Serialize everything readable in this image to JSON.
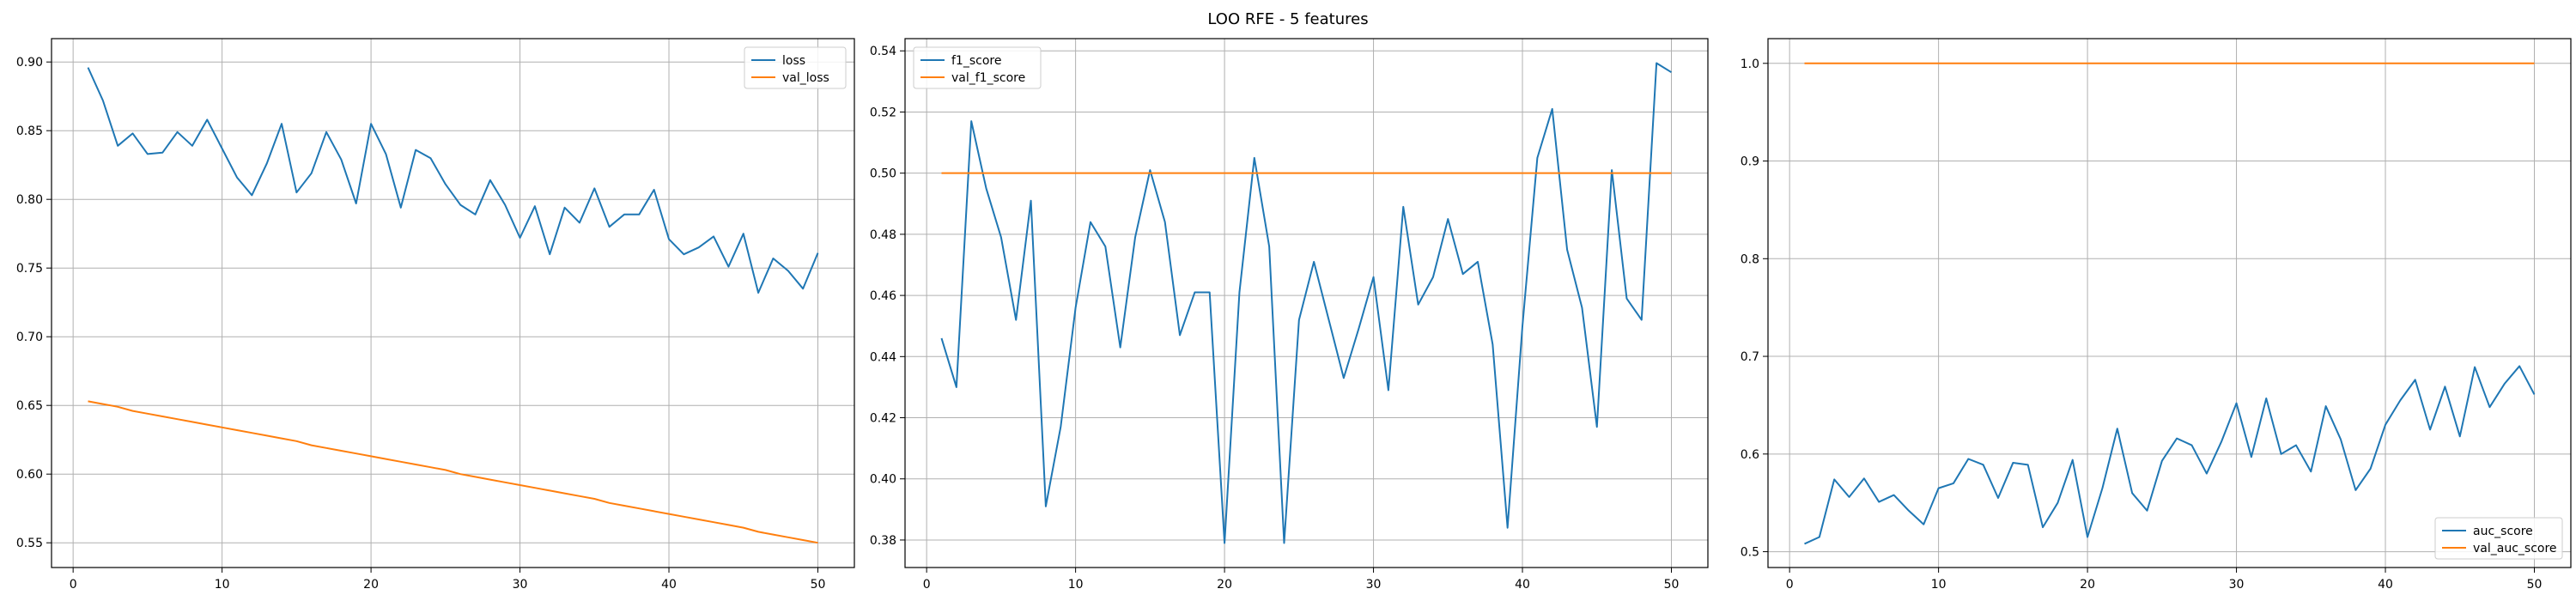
{
  "title": "LOO RFE - 5 features",
  "colors": {
    "series1": "#1f77b4",
    "series2": "#ff7f0e",
    "grid": "#b0b0b0"
  },
  "chart_data": [
    {
      "type": "line",
      "title": "",
      "xlabel": "",
      "ylabel": "",
      "xlim": [
        -1.45,
        52.45
      ],
      "ylim": [
        0.532,
        0.917
      ],
      "xticks": [
        0,
        10,
        20,
        30,
        40,
        50
      ],
      "yticks": [
        0.55,
        0.6,
        0.65,
        0.7,
        0.75,
        0.8,
        0.85,
        0.9
      ],
      "ytick_decimals": 2,
      "grid": true,
      "legend": "top-right",
      "x": [
        1,
        2,
        3,
        4,
        5,
        6,
        7,
        8,
        9,
        10,
        11,
        12,
        13,
        14,
        15,
        16,
        17,
        18,
        19,
        20,
        21,
        22,
        23,
        24,
        25,
        26,
        27,
        28,
        29,
        30,
        31,
        32,
        33,
        34,
        35,
        36,
        37,
        38,
        39,
        40,
        41,
        42,
        43,
        44,
        45,
        46,
        47,
        48,
        49,
        50
      ],
      "series": [
        {
          "name": "loss",
          "values": [
            0.896,
            0.872,
            0.839,
            0.848,
            0.833,
            0.834,
            0.849,
            0.839,
            0.858,
            0.837,
            0.816,
            0.803,
            0.826,
            0.855,
            0.805,
            0.819,
            0.849,
            0.829,
            0.797,
            0.855,
            0.833,
            0.794,
            0.836,
            0.83,
            0.811,
            0.796,
            0.789,
            0.814,
            0.796,
            0.772,
            0.795,
            0.76,
            0.794,
            0.783,
            0.808,
            0.78,
            0.789,
            0.789,
            0.807,
            0.771,
            0.76,
            0.765,
            0.773,
            0.751,
            0.775,
            0.732,
            0.757,
            0.748,
            0.735,
            0.761
          ]
        },
        {
          "name": "val_loss",
          "values": [
            0.653,
            0.651,
            0.649,
            0.646,
            0.644,
            0.642,
            0.64,
            0.638,
            0.636,
            0.634,
            0.632,
            0.63,
            0.628,
            0.626,
            0.624,
            0.621,
            0.619,
            0.617,
            0.615,
            0.613,
            0.611,
            0.609,
            0.607,
            0.605,
            0.603,
            0.6,
            0.598,
            0.596,
            0.594,
            0.592,
            0.59,
            0.588,
            0.586,
            0.584,
            0.582,
            0.579,
            0.577,
            0.575,
            0.573,
            0.571,
            0.569,
            0.567,
            0.565,
            0.563,
            0.561,
            0.558,
            0.556,
            0.554,
            0.552,
            0.55
          ]
        }
      ]
    },
    {
      "type": "line",
      "title": "",
      "xlabel": "",
      "ylabel": "",
      "xlim": [
        -1.45,
        52.45
      ],
      "ylim": [
        0.371,
        0.544
      ],
      "xticks": [
        0,
        10,
        20,
        30,
        40,
        50
      ],
      "yticks": [
        0.38,
        0.4,
        0.42,
        0.44,
        0.46,
        0.48,
        0.5,
        0.52,
        0.54
      ],
      "ytick_decimals": 2,
      "grid": true,
      "legend": "top-left",
      "x": [
        1,
        2,
        3,
        4,
        5,
        6,
        7,
        8,
        9,
        10,
        11,
        12,
        13,
        14,
        15,
        16,
        17,
        18,
        19,
        20,
        21,
        22,
        23,
        24,
        25,
        26,
        27,
        28,
        29,
        30,
        31,
        32,
        33,
        34,
        35,
        36,
        37,
        38,
        39,
        40,
        41,
        42,
        43,
        44,
        45,
        46,
        47,
        48,
        49,
        50
      ],
      "series": [
        {
          "name": "f1_score",
          "values": [
            0.446,
            0.43,
            0.517,
            0.495,
            0.479,
            0.452,
            0.491,
            0.391,
            0.417,
            0.456,
            0.484,
            0.476,
            0.443,
            0.479,
            0.501,
            0.484,
            0.447,
            0.461,
            0.461,
            0.379,
            0.461,
            0.505,
            0.476,
            0.379,
            0.452,
            0.471,
            0.452,
            0.433,
            0.449,
            0.466,
            0.429,
            0.489,
            0.457,
            0.466,
            0.485,
            0.467,
            0.471,
            0.444,
            0.384,
            0.45,
            0.505,
            0.521,
            0.475,
            0.456,
            0.417,
            0.501,
            0.459,
            0.452,
            0.536,
            0.533
          ]
        },
        {
          "name": "val_f1_score",
          "values": [
            0.5,
            0.5,
            0.5,
            0.5,
            0.5,
            0.5,
            0.5,
            0.5,
            0.5,
            0.5,
            0.5,
            0.5,
            0.5,
            0.5,
            0.5,
            0.5,
            0.5,
            0.5,
            0.5,
            0.5,
            0.5,
            0.5,
            0.5,
            0.5,
            0.5,
            0.5,
            0.5,
            0.5,
            0.5,
            0.5,
            0.5,
            0.5,
            0.5,
            0.5,
            0.5,
            0.5,
            0.5,
            0.5,
            0.5,
            0.5,
            0.5,
            0.5,
            0.5,
            0.5,
            0.5,
            0.5,
            0.5,
            0.5,
            0.5,
            0.5
          ]
        }
      ]
    },
    {
      "type": "line",
      "title": "",
      "xlabel": "",
      "ylabel": "",
      "xlim": [
        -1.45,
        52.45
      ],
      "ylim": [
        0.4838,
        1.0253
      ],
      "xticks": [
        0,
        10,
        20,
        30,
        40,
        50
      ],
      "yticks": [
        0.5,
        0.6,
        0.7,
        0.8,
        0.9,
        1.0
      ],
      "ytick_decimals": 1,
      "grid": true,
      "legend": "bottom-right",
      "x": [
        1,
        2,
        3,
        4,
        5,
        6,
        7,
        8,
        9,
        10,
        11,
        12,
        13,
        14,
        15,
        16,
        17,
        18,
        19,
        20,
        21,
        22,
        23,
        24,
        25,
        26,
        27,
        28,
        29,
        30,
        31,
        32,
        33,
        34,
        35,
        36,
        37,
        38,
        39,
        40,
        41,
        42,
        43,
        44,
        45,
        46,
        47,
        48,
        49,
        50
      ],
      "series": [
        {
          "name": "auc_score",
          "values": [
            0.508,
            0.515,
            0.574,
            0.556,
            0.575,
            0.551,
            0.558,
            0.542,
            0.528,
            0.565,
            0.57,
            0.595,
            0.589,
            0.555,
            0.591,
            0.589,
            0.525,
            0.55,
            0.594,
            0.515,
            0.565,
            0.626,
            0.56,
            0.542,
            0.593,
            0.616,
            0.609,
            0.58,
            0.613,
            0.652,
            0.597,
            0.657,
            0.6,
            0.609,
            0.582,
            0.649,
            0.615,
            0.563,
            0.585,
            0.63,
            0.655,
            0.676,
            0.625,
            0.669,
            0.618,
            0.689,
            0.648,
            0.672,
            0.69,
            0.661
          ]
        },
        {
          "name": "val_auc_score",
          "values": [
            1,
            1,
            1,
            1,
            1,
            1,
            1,
            1,
            1,
            1,
            1,
            1,
            1,
            1,
            1,
            1,
            1,
            1,
            1,
            1,
            1,
            1,
            1,
            1,
            1,
            1,
            1,
            1,
            1,
            1,
            1,
            1,
            1,
            1,
            1,
            1,
            1,
            1,
            1,
            1,
            1,
            1,
            1,
            1,
            1,
            1,
            1,
            1,
            1,
            1
          ]
        }
      ]
    }
  ]
}
